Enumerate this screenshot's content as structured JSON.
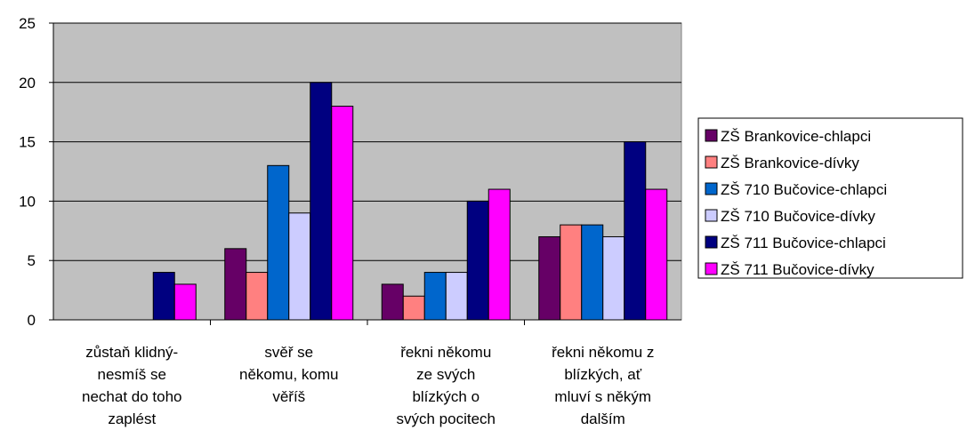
{
  "chart_data": {
    "type": "bar",
    "categories": [
      "zůstaň klidný-\nnesmíš se\nnechat do toho\nzaplést",
      "svěř se\nněkomu, komu\nvěříš",
      "řekni někomu\nze svých\nblízkých o\nsvých pocitech",
      "řekni někomu z\nblízkých, ať\nmluví s někým\ndalším"
    ],
    "series": [
      {
        "name": "ZŠ Brankovice-chlapci",
        "color": "#660066",
        "values": [
          0,
          6,
          3,
          7
        ]
      },
      {
        "name": "ZŠ Brankovice-dívky",
        "color": "#ff8080",
        "values": [
          0,
          4,
          2,
          8
        ]
      },
      {
        "name": "ZŠ 710 Bučovice-chlapci",
        "color": "#0066cc",
        "values": [
          0,
          13,
          4,
          8
        ]
      },
      {
        "name": "ZŠ 710 Bučovice-dívky",
        "color": "#ccccff",
        "values": [
          0,
          9,
          4,
          7
        ]
      },
      {
        "name": "ZŠ 711 Bučovice-chlapci",
        "color": "#000080",
        "values": [
          4,
          20,
          10,
          15
        ]
      },
      {
        "name": "ZŠ 711 Bučovice-dívky",
        "color": "#ff00ff",
        "values": [
          3,
          18,
          11,
          11
        ]
      }
    ],
    "ylim": [
      0,
      25
    ],
    "yticks": [
      0,
      5,
      10,
      15,
      20,
      25
    ],
    "legend": "right"
  }
}
